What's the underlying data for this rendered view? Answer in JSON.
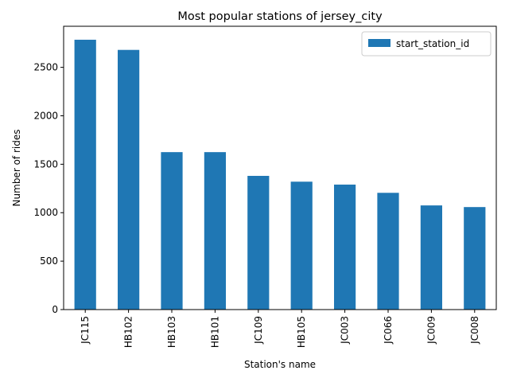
{
  "chart_data": {
    "type": "bar",
    "title": "Most popular stations of jersey_city",
    "xlabel": "Station's name",
    "ylabel": "Number of rides",
    "categories": [
      "JC115",
      "HB102",
      "HB103",
      "HB101",
      "JC109",
      "HB105",
      "JC003",
      "JC066",
      "JC009",
      "JC008"
    ],
    "series": [
      {
        "name": "start_station_id",
        "values": [
          2785,
          2680,
          1625,
          1625,
          1380,
          1320,
          1290,
          1205,
          1075,
          1058
        ],
        "color": "#1f77b4"
      }
    ],
    "yticks": [
      0,
      500,
      1000,
      1500,
      2000,
      2500
    ],
    "ylim": [
      0,
      2924
    ],
    "grid": false,
    "legend_position": "top-right"
  }
}
